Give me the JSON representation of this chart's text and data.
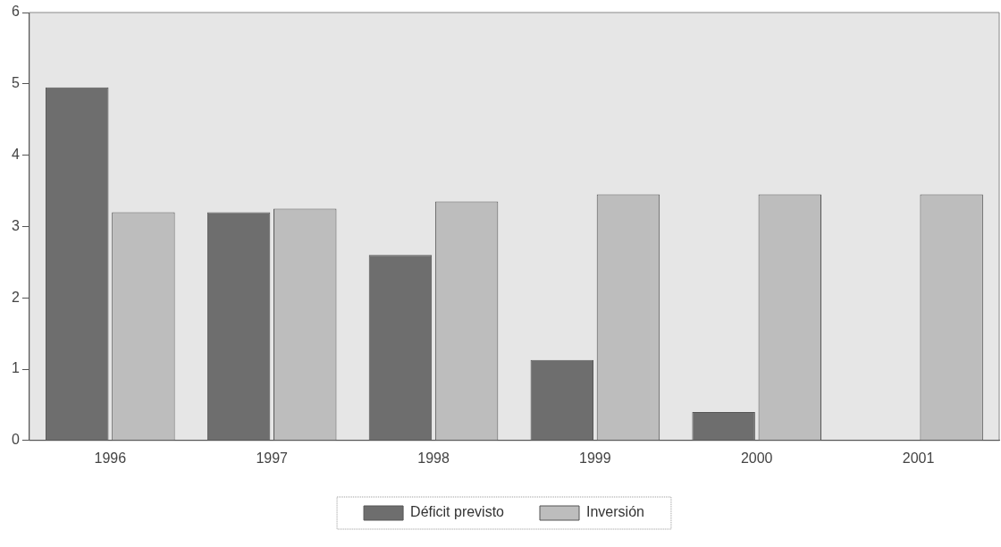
{
  "chart_data": {
    "type": "bar",
    "categories": [
      "1996",
      "1997",
      "1998",
      "1999",
      "2000",
      "2001"
    ],
    "series": [
      {
        "name": "Déficit previsto",
        "color": "#6e6e6e",
        "values": [
          4.95,
          3.2,
          2.6,
          1.13,
          0.4,
          null
        ]
      },
      {
        "name": "Inversión",
        "color": "#bdbdbd",
        "values": [
          3.2,
          3.25,
          3.35,
          3.45,
          3.45,
          3.45
        ]
      }
    ],
    "ylim": [
      0,
      6
    ],
    "yticks": [
      0,
      1,
      2,
      3,
      4,
      5,
      6
    ],
    "grid": false,
    "legend": "bottom"
  }
}
